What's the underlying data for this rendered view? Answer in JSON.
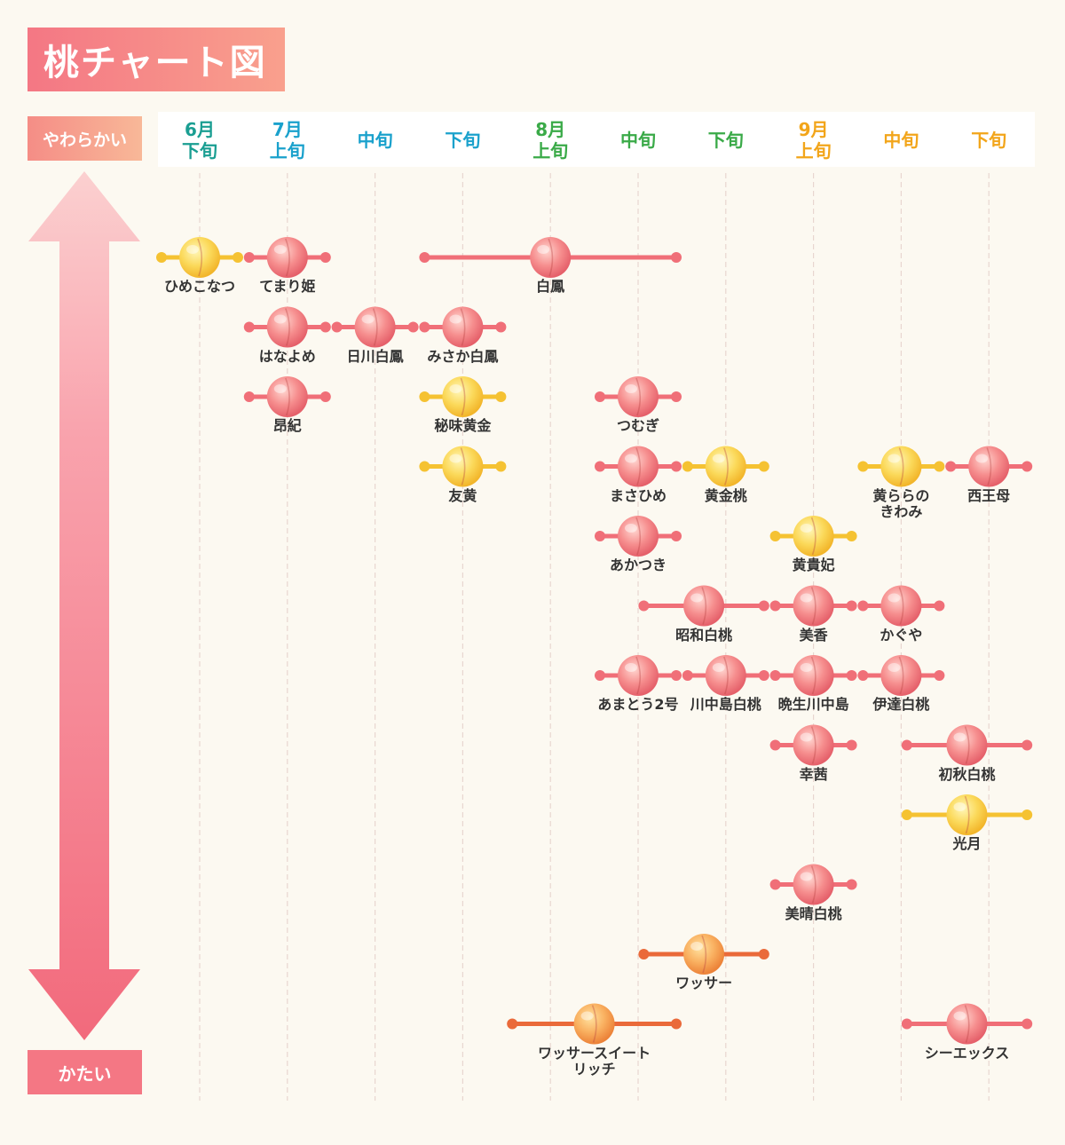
{
  "title": "桃チャート図",
  "axis": {
    "soft": "やわらかい",
    "hard": "かたい"
  },
  "colors": {
    "pink": "#f06f78",
    "yellow": "#f5c232",
    "orange": "#ea6a3a"
  },
  "chart_data": {
    "type": "timeline",
    "periods": [
      {
        "label": "6月\n下旬",
        "color": "#1a9e92"
      },
      {
        "label": "7月\n上旬",
        "color": "#1aa1cc"
      },
      {
        "label": "中旬",
        "color": "#1aa1cc"
      },
      {
        "label": "下旬",
        "color": "#1aa1cc"
      },
      {
        "label": "8月\n上旬",
        "color": "#3aaa48"
      },
      {
        "label": "中旬",
        "color": "#3aaa48"
      },
      {
        "label": "下旬",
        "color": "#3aaa48"
      },
      {
        "label": "9月\n上旬",
        "color": "#f2a51a"
      },
      {
        "label": "中旬",
        "color": "#f2a51a"
      },
      {
        "label": "下旬",
        "color": "#f2a51a"
      }
    ],
    "varieties": [
      {
        "name": "ひめこなつ",
        "start": 0,
        "end": 0,
        "hardness": 0,
        "kind": "yellow"
      },
      {
        "name": "てまり姫",
        "start": 1,
        "end": 1,
        "hardness": 0,
        "kind": "pink"
      },
      {
        "name": "白鳳",
        "start": 3,
        "end": 5,
        "hardness": 0,
        "kind": "pink"
      },
      {
        "name": "はなよめ",
        "start": 1,
        "end": 1,
        "hardness": 1,
        "kind": "pink"
      },
      {
        "name": "日川白鳳",
        "start": 2,
        "end": 2,
        "hardness": 1,
        "kind": "pink"
      },
      {
        "name": "みさか白鳳",
        "start": 3,
        "end": 3,
        "hardness": 1,
        "kind": "pink"
      },
      {
        "name": "昂紀",
        "start": 1,
        "end": 1,
        "hardness": 2,
        "kind": "pink"
      },
      {
        "name": "秘味黄金",
        "start": 3,
        "end": 3,
        "hardness": 2,
        "kind": "yellow"
      },
      {
        "name": "つむぎ",
        "start": 5,
        "end": 5,
        "hardness": 2,
        "kind": "pink"
      },
      {
        "name": "友黄",
        "start": 3,
        "end": 3,
        "hardness": 3,
        "kind": "yellow"
      },
      {
        "name": "まさひめ",
        "start": 5,
        "end": 5,
        "hardness": 3,
        "kind": "pink"
      },
      {
        "name": "黄金桃",
        "start": 6,
        "end": 6,
        "hardness": 3,
        "kind": "yellow"
      },
      {
        "name": "黄ららの\nきわみ",
        "start": 8,
        "end": 8,
        "hardness": 3,
        "kind": "yellow"
      },
      {
        "name": "西王母",
        "start": 9,
        "end": 9,
        "hardness": 3,
        "kind": "pink"
      },
      {
        "name": "あかつき",
        "start": 5,
        "end": 5,
        "hardness": 4,
        "kind": "pink"
      },
      {
        "name": "黄貴妃",
        "start": 7,
        "end": 7,
        "hardness": 4,
        "kind": "yellow"
      },
      {
        "name": "昭和白桃",
        "start": 5.5,
        "end": 6,
        "hardness": 5,
        "kind": "pink"
      },
      {
        "name": "美香",
        "start": 7,
        "end": 7,
        "hardness": 5,
        "kind": "pink"
      },
      {
        "name": "かぐや",
        "start": 8,
        "end": 8,
        "hardness": 5,
        "kind": "pink"
      },
      {
        "name": "あまとう2号",
        "start": 5,
        "end": 5,
        "hardness": 6,
        "kind": "pink"
      },
      {
        "name": "川中島白桃",
        "start": 6,
        "end": 6,
        "hardness": 6,
        "kind": "pink"
      },
      {
        "name": "晩生川中島",
        "start": 7,
        "end": 7,
        "hardness": 6,
        "kind": "pink"
      },
      {
        "name": "伊達白桃",
        "start": 8,
        "end": 8,
        "hardness": 6,
        "kind": "pink"
      },
      {
        "name": "幸茜",
        "start": 7,
        "end": 7,
        "hardness": 7,
        "kind": "pink"
      },
      {
        "name": "初秋白桃",
        "start": 8.5,
        "end": 9,
        "hardness": 7,
        "kind": "pink"
      },
      {
        "name": "光月",
        "start": 8.5,
        "end": 9,
        "hardness": 8,
        "kind": "yellow"
      },
      {
        "name": "美晴白桃",
        "start": 7,
        "end": 7,
        "hardness": 9,
        "kind": "pink"
      },
      {
        "name": "ワッサー",
        "start": 5.5,
        "end": 6,
        "hardness": 10,
        "kind": "orange"
      },
      {
        "name": "ワッサースイートリッチ",
        "start": 4,
        "end": 5,
        "hardness": 11,
        "kind": "orange"
      },
      {
        "name": "シーエックス",
        "start": 8.5,
        "end": 9,
        "hardness": 11,
        "kind": "pink"
      }
    ]
  }
}
